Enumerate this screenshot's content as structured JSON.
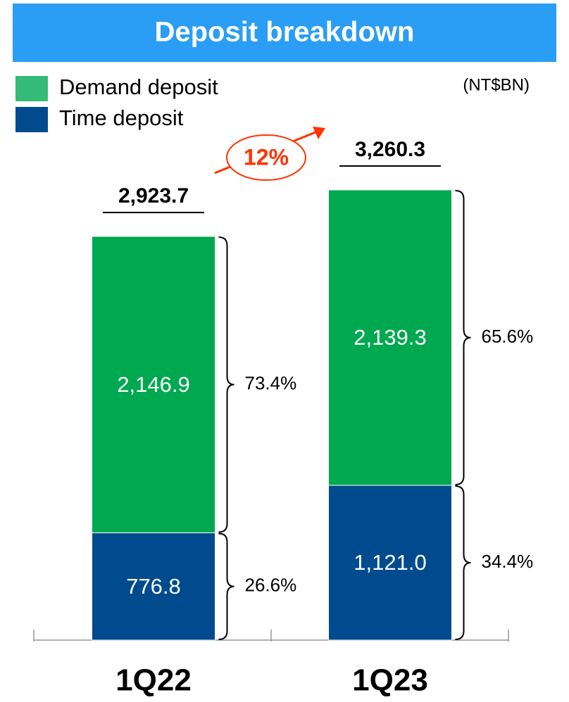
{
  "chart_data": {
    "type": "stacked_bar",
    "title": "Deposit breakdown",
    "unit": "(NT$BN)",
    "categories": [
      "1Q22",
      "1Q23"
    ],
    "series": [
      {
        "name": "Demand deposit",
        "color": "#00a84f",
        "legend_color": "#33bb77",
        "values": [
          2146.9,
          2139.3
        ],
        "value_labels": [
          "2,146.9",
          "2,139.3"
        ],
        "shares": [
          73.4,
          65.6
        ],
        "share_labels": [
          "73.4%",
          "65.6%"
        ]
      },
      {
        "name": "Time deposit",
        "color": "#004b8d",
        "legend_color": "#004b8d",
        "values": [
          776.8,
          1121.0
        ],
        "value_labels": [
          "776.8",
          "1,121.0"
        ],
        "shares": [
          26.6,
          34.4
        ],
        "share_labels": [
          "26.6%",
          "34.4%"
        ]
      }
    ],
    "totals": [
      2923.7,
      3260.3
    ],
    "total_labels": [
      "2,923.7",
      "3,260.3"
    ],
    "growth": {
      "value": 12,
      "label": "12%",
      "color": "#ff3300"
    }
  }
}
